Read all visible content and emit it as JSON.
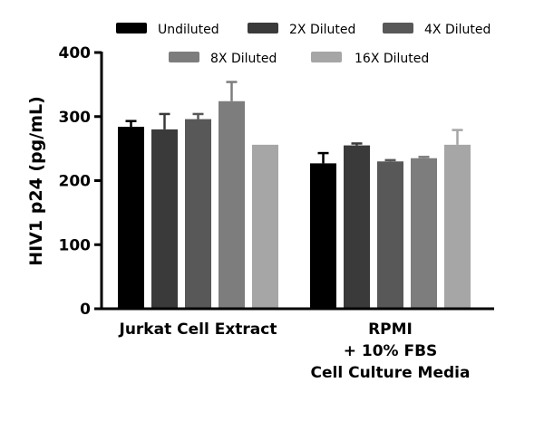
{
  "chart_data": {
    "type": "bar",
    "title": "",
    "xlabel": "",
    "ylabel": "HIV1 p24 (pg/mL)",
    "ylim": [
      0,
      400
    ],
    "yticks": [
      "0",
      "100",
      "200",
      "300",
      "400"
    ],
    "categories": [
      [
        "Jurkat Cell Extract"
      ],
      [
        "RPMI",
        "+ 10% FBS",
        "Cell Culture Media"
      ]
    ],
    "legend_position": "top",
    "grid": false,
    "series": [
      {
        "name": "Undiluted",
        "color": "#000000",
        "values": [
          284,
          227
        ],
        "errors": [
          9,
          16
        ]
      },
      {
        "name": "2X Diluted",
        "color": "#3a3a3a",
        "values": [
          280,
          255
        ],
        "errors": [
          24,
          3
        ]
      },
      {
        "name": "4X Diluted",
        "color": "#585858",
        "values": [
          296,
          230
        ],
        "errors": [
          8,
          2
        ]
      },
      {
        "name": "8X Diluted",
        "color": "#7d7d7d",
        "values": [
          324,
          235
        ],
        "errors": [
          30,
          2
        ]
      },
      {
        "name": "16X Diluted",
        "color": "#a6a6a6",
        "values": [
          256,
          256
        ],
        "errors": [
          0,
          23
        ]
      }
    ]
  }
}
